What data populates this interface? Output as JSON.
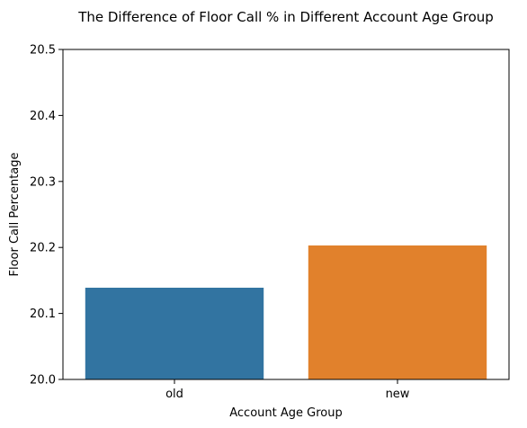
{
  "chart_data": {
    "type": "bar",
    "title": "The Difference of Floor Call % in Different Account Age Group",
    "xlabel": "Account Age Group",
    "ylabel": "Floor Call Percentage",
    "categories": [
      "old",
      "new"
    ],
    "values": [
      20.139,
      20.203
    ],
    "colors": [
      "#3274a1",
      "#e1812c"
    ],
    "ylim": [
      20.0,
      20.5
    ],
    "yticks": [
      "20.0",
      "20.1",
      "20.2",
      "20.3",
      "20.4",
      "20.5"
    ],
    "grid": false,
    "legend": "none"
  }
}
